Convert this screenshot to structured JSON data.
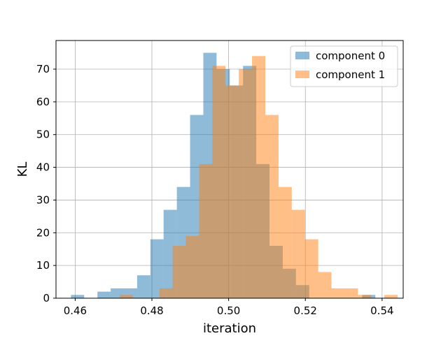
{
  "chart_data": {
    "type": "histogram",
    "title": "",
    "xlabel": "iteration",
    "ylabel": "KL",
    "xlim": [
      0.455,
      0.5455
    ],
    "ylim": [
      0,
      78.75
    ],
    "xticks": [
      0.46,
      0.48,
      0.5,
      0.52,
      0.54
    ],
    "xtick_labels": [
      "0.46",
      "0.48",
      "0.50",
      "0.52",
      "0.54"
    ],
    "yticks": [
      0,
      10,
      20,
      30,
      40,
      50,
      60,
      70
    ],
    "ytick_labels": [
      "0",
      "10",
      "20",
      "30",
      "40",
      "50",
      "60",
      "70"
    ],
    "grid": true,
    "legend_position": "top-right",
    "series": [
      {
        "name": "component 0",
        "color": "#1f77b4",
        "opacity": 0.5,
        "bin_start": 0.4589,
        "bin_width": 0.00345,
        "counts": [
          1,
          0,
          2,
          3,
          3,
          7,
          18,
          27,
          34,
          56,
          75,
          70,
          65,
          71,
          41,
          16,
          9,
          4,
          0,
          0,
          0,
          0,
          1
        ]
      },
      {
        "name": "component 1",
        "color": "#ff7f0e",
        "opacity": 0.5,
        "bin_start": 0.4716,
        "bin_width": 0.00345,
        "counts": [
          1,
          0,
          0,
          3,
          16,
          19,
          41,
          71,
          65,
          70,
          74,
          56,
          34,
          27,
          18,
          8,
          3,
          3,
          1,
          0,
          1
        ]
      }
    ]
  }
}
